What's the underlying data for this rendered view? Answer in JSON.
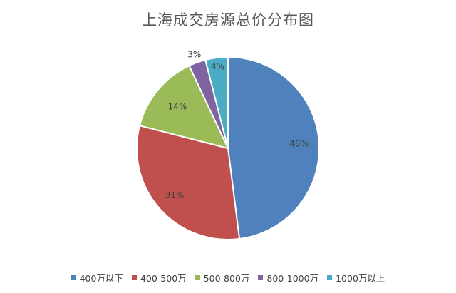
{
  "chart_data": {
    "type": "pie",
    "title": "上海成交房源总价分布图",
    "categories": [
      "400万以下",
      "400-500万",
      "500-800万",
      "800-1000万",
      "1000万以上"
    ],
    "values": [
      48,
      31,
      14,
      3,
      4
    ],
    "labels": [
      "48%",
      "31%",
      "14%",
      "3%",
      "4%"
    ],
    "colors": [
      "#4F81BD",
      "#C0504D",
      "#9BBB59",
      "#8064A2",
      "#4BACC6"
    ],
    "start_angle_deg": 0,
    "direction": "clockwise",
    "legend_position": "bottom"
  }
}
